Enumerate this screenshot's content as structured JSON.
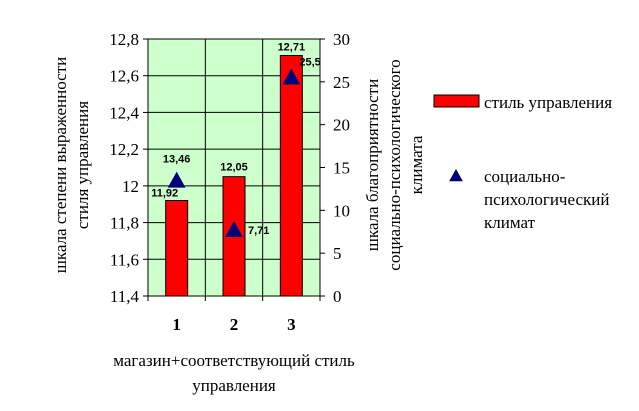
{
  "chart_data": {
    "type": "bar",
    "categories": [
      "1",
      "2",
      "3"
    ],
    "series": [
      {
        "name": "стиль управления",
        "kind": "bar",
        "axis": "left",
        "values": [
          11.92,
          12.05,
          12.71
        ],
        "labels": [
          "11,92",
          "12,05",
          "12,71"
        ],
        "color": "#ff0000"
      },
      {
        "name": "социально-психологический климат",
        "kind": "marker",
        "marker": "triangle",
        "axis": "right",
        "values": [
          13.46,
          7.71,
          25.5
        ],
        "labels": [
          "13,46",
          "7,71",
          "25,5"
        ],
        "color": "#000080"
      }
    ],
    "xlabel": "магазин+соответствующий стиль управления",
    "ylabel_left": "шкала степени выраженности стиля управления",
    "ylabel_right": "шкала благоприятности социально-психологического климата",
    "ylim_left": [
      11.4,
      12.8
    ],
    "yticks_left": [
      "11,4",
      "11,6",
      "11,8",
      "12",
      "12,2",
      "12,4",
      "12,6",
      "12,8"
    ],
    "ylim_right": [
      0,
      30
    ],
    "yticks_right": [
      "0",
      "5",
      "10",
      "15",
      "20",
      "25",
      "30"
    ],
    "grid": true,
    "plot_background": "#ccffcc",
    "legend_position": "right",
    "legend_lines": [
      [
        "стиль управления"
      ],
      [
        "социально-",
        "психологический",
        "климат"
      ]
    ],
    "xlabel_lines": [
      "магазин+соответствующий стиль",
      "управления"
    ],
    "ylabel_left_lines": [
      "шкала степени выраженности",
      "стиля управления"
    ],
    "ylabel_right_lines": [
      "шкала благоприятности",
      "социально-психологического",
      "климата"
    ]
  }
}
